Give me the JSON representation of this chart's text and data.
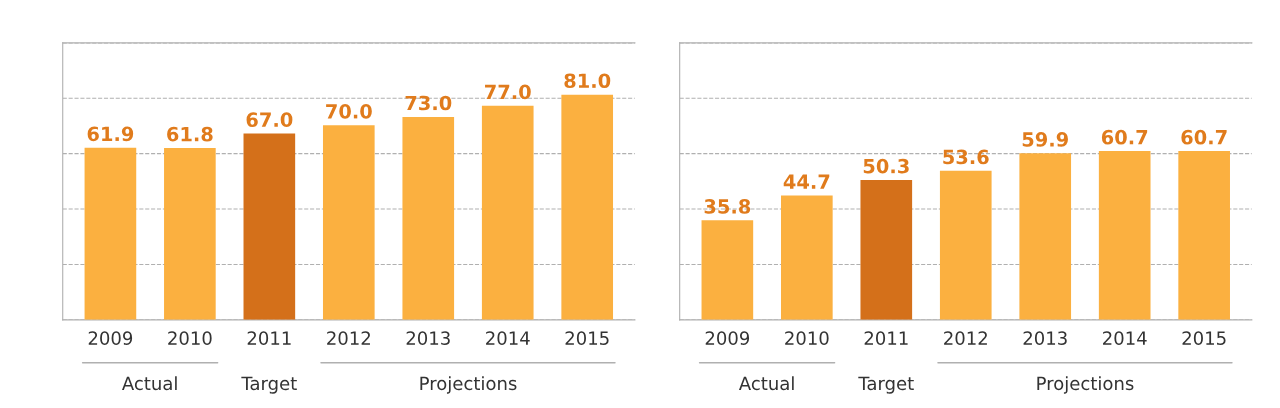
{
  "chart_data": [
    {
      "type": "bar",
      "categories": [
        "2009",
        "2010",
        "2011",
        "2012",
        "2013",
        "2014",
        "2015"
      ],
      "series": [
        {
          "colors": [
            "#fbb040",
            "#fbb040",
            "#d4701a",
            "#fbb040",
            "#fbb040",
            "#fbb040",
            "#fbb040"
          ],
          "values": [
            61.9,
            61.8,
            67.0,
            70.0,
            73.0,
            77.0,
            81.0
          ],
          "value_labels": [
            "61.9",
            "61.8",
            "67.0",
            "70.0",
            "73.0",
            "77.0",
            "81.0"
          ]
        }
      ],
      "grid": "y",
      "annotations": [
        "Actual",
        "Target",
        "Projections"
      ]
    },
    {
      "type": "bar",
      "categories": [
        "2009",
        "2010",
        "2011",
        "2012",
        "2013",
        "2014",
        "2015"
      ],
      "series": [
        {
          "colors": [
            "#fbb040",
            "#fbb040",
            "#d4701a",
            "#fbb040",
            "#fbb040",
            "#fbb040",
            "#fbb040"
          ],
          "values": [
            35.8,
            44.7,
            50.3,
            53.6,
            59.9,
            60.7,
            60.7
          ],
          "value_labels": [
            "35.8",
            "44.7",
            "50.3",
            "53.6",
            "59.9",
            "60.7",
            "60.7"
          ]
        }
      ],
      "grid": "y",
      "annotations": [
        "Actual",
        "Target",
        "Projections"
      ]
    }
  ]
}
